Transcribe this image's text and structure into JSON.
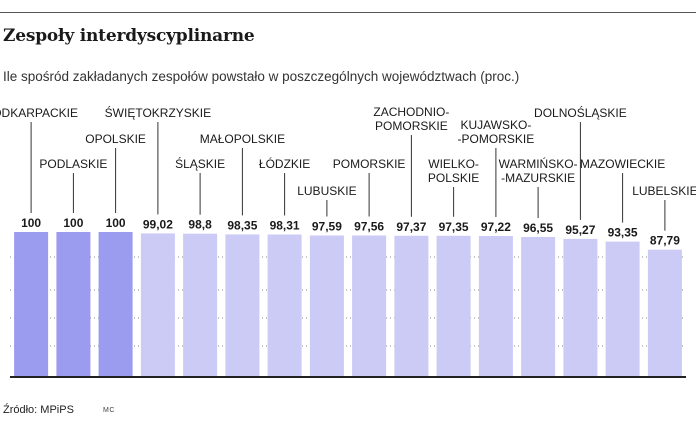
{
  "title": "Zespoły interdyscyplinarne",
  "subtitle": "Ile spośród zakładanych zespołów powstało w poszczególnych województwach (proc.)",
  "source": "Źródło: MPiPS",
  "credit": "MC",
  "colors": {
    "highlight": "#9b9bef",
    "bar": "#cbcbf6",
    "leader": "#333333"
  },
  "chart_data": {
    "type": "bar",
    "categories": [
      [
        "PODKARPACKIE"
      ],
      [
        "PODLASKIE"
      ],
      [
        "OPOLSKIE"
      ],
      [
        "ŚWIĘTOKRZYSKIE"
      ],
      [
        "ŚLĄSKIE"
      ],
      [
        "MAŁOPOLSKIE"
      ],
      [
        "ŁÓDZKIE"
      ],
      [
        "LUBUSKIE"
      ],
      [
        "POMORSKIE"
      ],
      [
        "ZACHODNIO-",
        "POMORSKIE"
      ],
      [
        "WIELKO-",
        "POLSKIE"
      ],
      [
        "KUJAWSKO-",
        "-POMORSKIE"
      ],
      [
        "WARMIŃSKO-",
        "-MAZURSKIE"
      ],
      [
        "DOLNOŚLĄSKIE"
      ],
      [
        "MAZOWIECKIE"
      ],
      [
        "LUBELSKIE"
      ]
    ],
    "values": [
      100,
      100,
      100,
      99.02,
      98.8,
      98.35,
      98.31,
      97.59,
      97.56,
      97.37,
      97.35,
      97.22,
      96.55,
      95.27,
      93.35,
      87.79
    ],
    "value_labels": [
      "100",
      "100",
      "100",
      "99,02",
      "98,8",
      "98,35",
      "98,31",
      "97,59",
      "97,56",
      "97,37",
      "97,35",
      "97,22",
      "96,55",
      "95,27",
      "93,35",
      "87,79"
    ],
    "highlighted": [
      true,
      true,
      true,
      false,
      false,
      false,
      false,
      false,
      false,
      false,
      false,
      false,
      false,
      false,
      false,
      false
    ],
    "grid": true
  }
}
